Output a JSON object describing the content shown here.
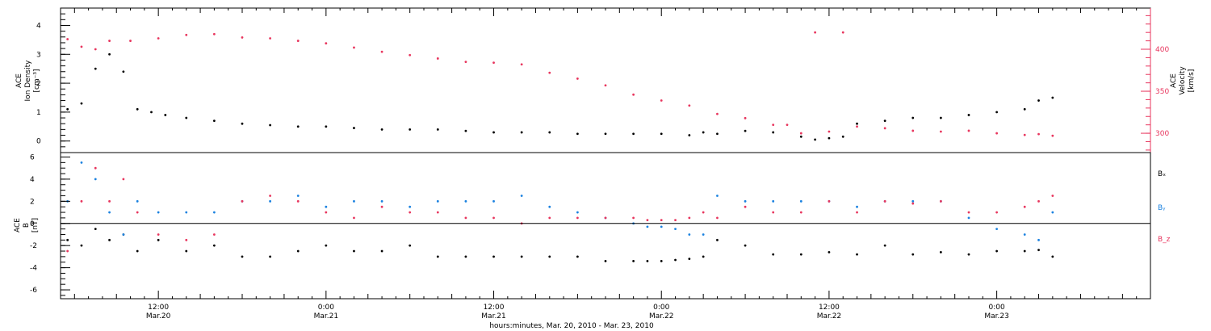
{
  "figure": {
    "xlabel": "hours:minutes, Mar. 20, 2010 - Mar. 23, 2010",
    "time_ticks": [
      {
        "t": 12,
        "time": "12:00",
        "date": "Mar.20"
      },
      {
        "t": 24,
        "time": "0:00",
        "date": "Mar.21"
      },
      {
        "t": 36,
        "time": "12:00",
        "date": "Mar.21"
      },
      {
        "t": 48,
        "time": "0:00",
        "date": "Mar.22"
      },
      {
        "t": 60,
        "time": "12:00",
        "date": "Mar.22"
      },
      {
        "t": 72,
        "time": "0:00",
        "date": "Mar.23"
      }
    ]
  },
  "colors": {
    "density": "#000000",
    "velocity": "#e8365e",
    "bx": "#000000",
    "by": "#1b82e0",
    "bz": "#e8365e",
    "velocity_axis": "#e8365e",
    "frame": "#000000"
  },
  "chart_data": [
    {
      "type": "scatter",
      "panel": "ion-density-velocity",
      "ylabel_left": [
        "ACE",
        "Ion Density",
        "[cm⁻³]"
      ],
      "ylabel_right": [
        "ACE",
        "Velocity",
        "[km/s]"
      ],
      "ylim_left": [
        -0.4,
        4.6
      ],
      "yticks_left": [
        0,
        1,
        2,
        3,
        4
      ],
      "ylim_right": [
        277,
        449
      ],
      "yticks_right": [
        300,
        350,
        400
      ],
      "xlim_hours": [
        5,
        83
      ],
      "series": [
        {
          "name": "",
          "axis": "left",
          "x": [
            5.5,
            6.5,
            7.5,
            8.5,
            9.5,
            10.5,
            11.5,
            12.5,
            14,
            16,
            18,
            20,
            22,
            24,
            26,
            28,
            30,
            32,
            34,
            36,
            38,
            40,
            42,
            44,
            46,
            48,
            50,
            51,
            52,
            54,
            56,
            58,
            59,
            60,
            61,
            62,
            64,
            66,
            68,
            70,
            72,
            74,
            75,
            76
          ],
          "y": [
            1.1,
            1.3,
            2.5,
            3.0,
            2.4,
            1.1,
            1.0,
            0.9,
            0.8,
            0.7,
            0.6,
            0.55,
            0.5,
            0.5,
            0.45,
            0.4,
            0.4,
            0.4,
            0.35,
            0.3,
            0.3,
            0.3,
            0.25,
            0.25,
            0.25,
            0.25,
            0.2,
            0.3,
            0.25,
            0.35,
            0.3,
            0.15,
            0.05,
            0.1,
            0.15,
            0.6,
            0.7,
            0.8,
            0.8,
            0.9,
            1.0,
            1.1,
            1.4,
            1.5
          ]
        },
        {
          "name": "",
          "axis": "right",
          "x": [
            5.5,
            6.5,
            7.5,
            8.5,
            10,
            12,
            14,
            16,
            18,
            20,
            22,
            24,
            26,
            28,
            30,
            32,
            34,
            36,
            38,
            40,
            42,
            44,
            46,
            48,
            50,
            52,
            54,
            56,
            57,
            58,
            59,
            60,
            61,
            62,
            64,
            66,
            68,
            70,
            72,
            74,
            75,
            76
          ],
          "y": [
            412,
            403,
            400,
            410,
            410,
            413,
            417,
            418,
            414,
            413,
            410,
            407,
            402,
            397,
            393,
            389,
            385,
            384,
            382,
            372,
            365,
            357,
            346,
            339,
            333,
            323,
            318,
            310,
            310,
            300,
            420,
            302,
            420,
            308,
            306,
            303,
            302,
            303,
            300,
            298,
            299,
            297
          ]
        }
      ]
    },
    {
      "type": "scatter",
      "panel": "magnetic-field",
      "ylabel": [
        "ACE",
        "B",
        "[nT]"
      ],
      "ylim": [
        -6.8,
        6.4
      ],
      "yticks": [
        -6,
        -4,
        -2,
        0,
        2,
        4,
        6
      ],
      "xlim_hours": [
        5,
        83
      ],
      "legend_labels": [
        "Bₓ",
        "Bᵧ",
        "B_z"
      ],
      "legend_placement": "right",
      "series": [
        {
          "name": "Bₓ",
          "x": [
            5.5,
            6.5,
            7.5,
            8.5,
            9.5,
            10.5,
            12,
            14,
            16,
            18,
            20,
            22,
            24,
            26,
            28,
            30,
            32,
            34,
            36,
            38,
            40,
            42,
            44,
            46,
            47,
            48,
            49,
            50,
            51,
            52,
            54,
            56,
            58,
            60,
            62,
            64,
            66,
            68,
            70,
            72,
            74,
            75,
            76
          ],
          "y": [
            -1.5,
            -2.0,
            -0.5,
            -1.5,
            -1.0,
            -2.5,
            -1.5,
            -2.5,
            -2.0,
            -3.0,
            -3.0,
            -2.5,
            -2.0,
            -2.5,
            -2.5,
            -2.0,
            -3.0,
            -3.0,
            -3.0,
            -3.0,
            -3.0,
            -3.0,
            -3.4,
            -3.4,
            -3.4,
            -3.4,
            -3.3,
            -3.2,
            -3.0,
            -1.5,
            -2.0,
            -2.8,
            -2.8,
            -2.6,
            -2.8,
            -2.0,
            -2.8,
            -2.6,
            -2.8,
            -2.5,
            -2.5,
            -2.4,
            -3.0
          ]
        },
        {
          "name": "Bᵧ",
          "x": [
            5.5,
            6.5,
            7.5,
            8.5,
            9.5,
            10.5,
            12,
            14,
            16,
            18,
            20,
            22,
            24,
            26,
            28,
            30,
            32,
            34,
            36,
            38,
            40,
            42,
            44,
            46,
            47,
            48,
            49,
            50,
            51,
            52,
            54,
            56,
            58,
            60,
            62,
            64,
            66,
            68,
            70,
            72,
            74,
            75,
            76
          ],
          "y": [
            2.0,
            5.5,
            4.0,
            1.0,
            -1.0,
            2.0,
            1.0,
            1.0,
            1.0,
            2.0,
            2.0,
            2.5,
            1.5,
            2.0,
            2.0,
            1.5,
            2.0,
            2.0,
            2.0,
            2.5,
            1.5,
            1.0,
            0.5,
            0.0,
            -0.3,
            -0.3,
            -0.5,
            -1.0,
            -1.0,
            2.5,
            2.0,
            2.0,
            2.0,
            2.0,
            1.5,
            2.0,
            2.0,
            2.0,
            0.5,
            -0.5,
            -1.0,
            -1.5,
            1.0
          ]
        },
        {
          "name": "B_z",
          "x": [
            5.5,
            6.5,
            7.5,
            8.5,
            9.5,
            10.5,
            12,
            14,
            16,
            18,
            20,
            22,
            24,
            26,
            28,
            30,
            32,
            34,
            36,
            38,
            40,
            42,
            44,
            46,
            47,
            48,
            49,
            50,
            51,
            52,
            54,
            56,
            58,
            60,
            62,
            64,
            66,
            68,
            70,
            72,
            74,
            75,
            76
          ],
          "y": [
            -2.5,
            2.0,
            5.0,
            2.0,
            4.0,
            1.0,
            -1.0,
            -1.5,
            -1.0,
            2.0,
            2.5,
            2.0,
            1.0,
            0.5,
            1.5,
            1.0,
            1.0,
            0.5,
            0.5,
            0.0,
            0.5,
            0.5,
            0.5,
            0.5,
            0.3,
            0.3,
            0.3,
            0.5,
            1.0,
            0.5,
            1.5,
            1.0,
            1.0,
            2.0,
            1.0,
            2.0,
            1.8,
            2.0,
            1.0,
            1.0,
            1.5,
            2.0,
            2.5
          ]
        }
      ]
    }
  ]
}
